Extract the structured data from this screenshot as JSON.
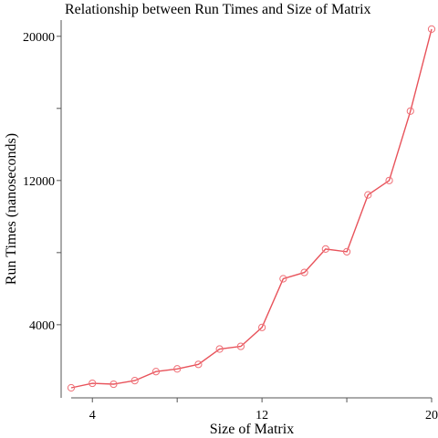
{
  "chart_data": {
    "type": "line",
    "title": "Relationship between Run Times and Size of Matrix",
    "xlabel": "Size of Matrix",
    "ylabel": "Run Times (nanoseconds)",
    "xlim": [
      3,
      20
    ],
    "ylim": [
      500,
      20900
    ],
    "x_ticks": [
      4,
      8,
      12,
      16,
      20
    ],
    "x_tick_labels": [
      "4",
      "",
      "12",
      "",
      "20"
    ],
    "y_ticks": [
      4000,
      8000,
      12000,
      16000,
      20000
    ],
    "y_tick_labels": [
      "4000",
      "",
      "12000",
      "",
      "20000"
    ],
    "grid": false,
    "series": [
      {
        "color": "#e8535b",
        "x": [
          3,
          4,
          5,
          6,
          7,
          8,
          9,
          10,
          11,
          12,
          13,
          14,
          15,
          16,
          17,
          18,
          19,
          20
        ],
        "y": [
          500,
          750,
          700,
          900,
          1400,
          1550,
          1800,
          2650,
          2800,
          3850,
          6550,
          6900,
          8200,
          8050,
          11200,
          12000,
          15850,
          20400
        ]
      }
    ]
  }
}
